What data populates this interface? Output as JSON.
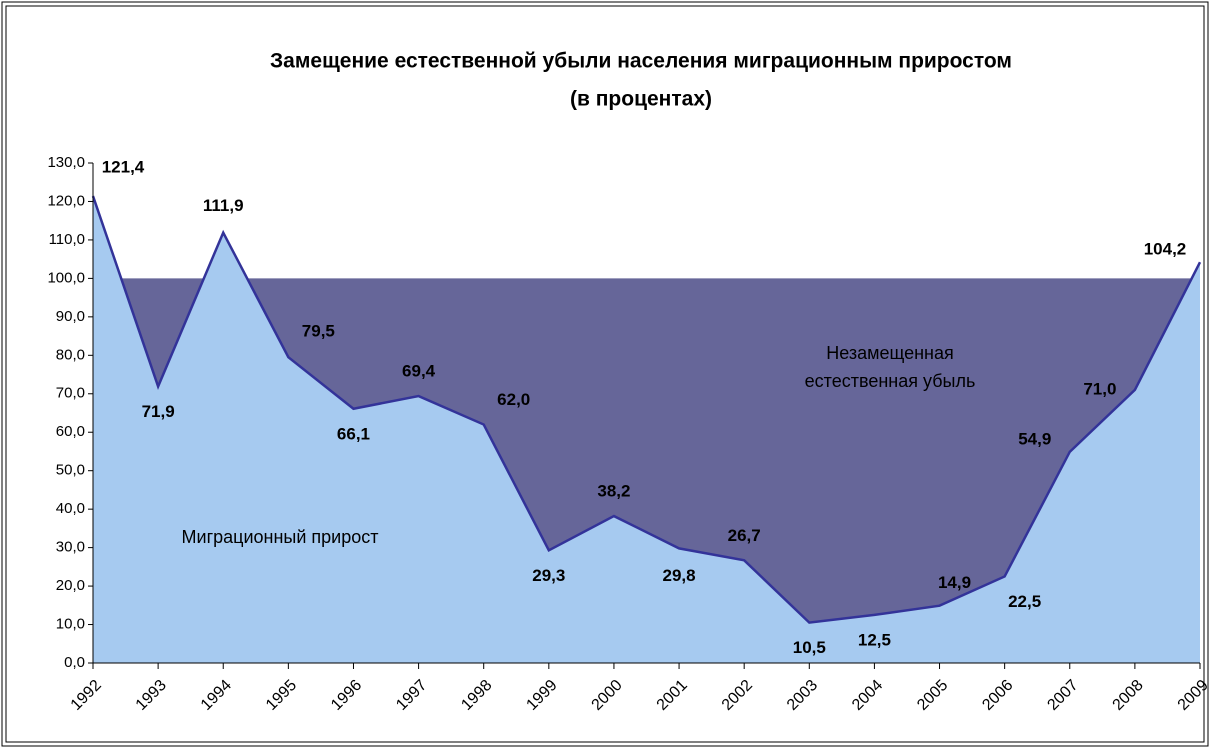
{
  "chart_data": {
    "type": "area",
    "title": "Замещение естественной убыли населения миграционным приростом",
    "subtitle": "(в процентах)",
    "categories": [
      "1992",
      "1993",
      "1994",
      "1995",
      "1996",
      "1997",
      "1998",
      "1999",
      "2000",
      "2001",
      "2002",
      "2003",
      "2004",
      "2005",
      "2006",
      "2007",
      "2008",
      "2009"
    ],
    "series": [
      {
        "name": "Миграционный прирост",
        "color": "#a6caf0",
        "line_color": "#333399",
        "values": [
          121.4,
          71.9,
          111.9,
          79.5,
          66.1,
          69.4,
          62.0,
          29.3,
          38.2,
          29.8,
          26.7,
          10.5,
          12.5,
          14.9,
          22.5,
          54.9,
          71.0,
          104.2
        ],
        "value_labels": [
          "121,4",
          "71,9",
          "111,9",
          "79,5",
          "66,1",
          "69,4",
          "62,0",
          "29,3",
          "38,2",
          "29,8",
          "26,7",
          "10,5",
          "12,5",
          "14,9",
          "22,5",
          "54,9",
          "71,0",
          "104,2"
        ]
      },
      {
        "name": "Незамещенная естественная убыль",
        "color": "#666699",
        "values": [
          100,
          100,
          100,
          100,
          100,
          100,
          100,
          100,
          100,
          100,
          100,
          100,
          100,
          100,
          100,
          100,
          100,
          100
        ]
      }
    ],
    "ylim": [
      0,
      130
    ],
    "yticks": [
      {
        "value": 0,
        "label": "0,0"
      },
      {
        "value": 10,
        "label": "10,0"
      },
      {
        "value": 20,
        "label": "20,0"
      },
      {
        "value": 30,
        "label": "30,0"
      },
      {
        "value": 40,
        "label": "40,0"
      },
      {
        "value": 50,
        "label": "50,0"
      },
      {
        "value": 60,
        "label": "60,0"
      },
      {
        "value": 70,
        "label": "70,0"
      },
      {
        "value": 80,
        "label": "80,0"
      },
      {
        "value": 90,
        "label": "90,0"
      },
      {
        "value": 100,
        "label": "100,0"
      },
      {
        "value": 110,
        "label": "110,0"
      },
      {
        "value": 120,
        "label": "120,0"
      },
      {
        "value": 130,
        "label": "130,0"
      }
    ]
  }
}
